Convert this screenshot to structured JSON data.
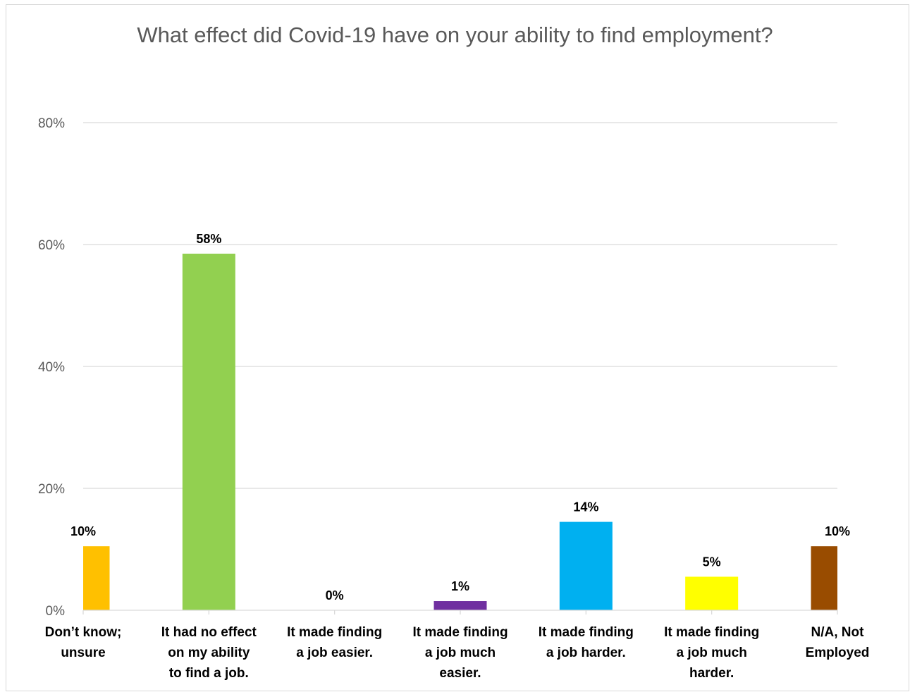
{
  "chart_data": {
    "type": "bar",
    "title": "What effect did Covid-19 have on your ability to find employment?",
    "categories": [
      [
        "Don’t know;",
        "unsure"
      ],
      [
        "It had no effect",
        "on my ability",
        "to find a job."
      ],
      [
        "It made finding",
        "a job easier."
      ],
      [
        "It made finding",
        "a job much",
        "easier."
      ],
      [
        "It made finding",
        "a job harder."
      ],
      [
        "It made finding",
        "a job much",
        "harder."
      ],
      [
        "N/A, Not",
        "Employed"
      ]
    ],
    "values": [
      10.5,
      58.5,
      0,
      1.5,
      14.5,
      5.5,
      10.5
    ],
    "data_labels": [
      "10%",
      "58%",
      "0%",
      "1%",
      "14%",
      "5%",
      "10%"
    ],
    "colors": [
      "#FFC000",
      "#92D050",
      "#BFBFBF",
      "#7030A0",
      "#00B0F0",
      "#FFFF00",
      "#994C00"
    ],
    "ylim": [
      0,
      80
    ],
    "yticks": [
      0,
      20,
      40,
      60,
      80
    ],
    "ytick_labels": [
      "0%",
      "20%",
      "40%",
      "60%",
      "80%"
    ],
    "grid": true,
    "legend": "none"
  }
}
